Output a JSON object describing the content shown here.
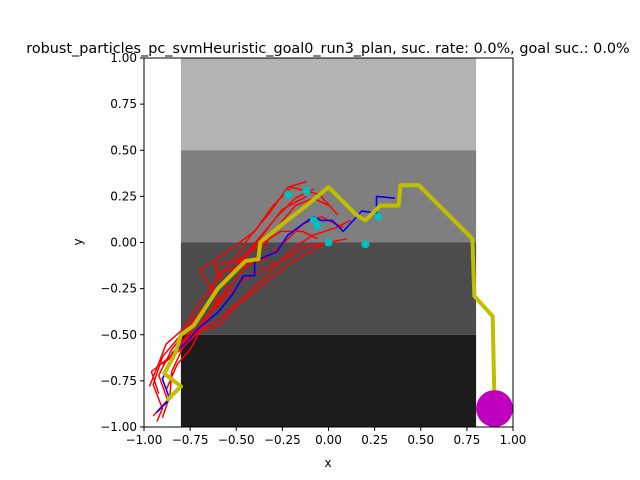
{
  "chart_data": {
    "type": "line",
    "title": "robust_particles_pc_svmHeuristic_goal0_run3_plan, suc. rate: 0.0%, goal suc.: 0.0%",
    "xlabel": "x",
    "ylabel": "y",
    "xlim": [
      -1.0,
      1.0
    ],
    "ylim": [
      -1.0,
      1.0
    ],
    "xticks": [
      "−1.00",
      "−0.75",
      "−0.50",
      "−0.25",
      "0.00",
      "0.25",
      "0.50",
      "0.75",
      "1.00"
    ],
    "yticks": [
      "−1.00",
      "−0.75",
      "−0.50",
      "−0.25",
      "0.00",
      "0.25",
      "0.50",
      "0.75",
      "1.00"
    ],
    "xtick_values": [
      -1.0,
      -0.75,
      -0.5,
      -0.25,
      0.0,
      0.25,
      0.5,
      0.75,
      1.0
    ],
    "ytick_values": [
      -1.0,
      -0.75,
      -0.5,
      -0.25,
      0.0,
      0.25,
      0.5,
      0.75,
      1.0
    ],
    "grid": false,
    "regions": [
      {
        "x0": -0.8,
        "x1": 0.8,
        "y0": 0.5,
        "y1": 1.0,
        "color": "#b3b3b3"
      },
      {
        "x0": -0.8,
        "x1": 0.8,
        "y0": 0.0,
        "y1": 0.5,
        "color": "#7f7f7f"
      },
      {
        "x0": -0.8,
        "x1": 0.8,
        "y0": -0.5,
        "y1": 0.0,
        "color": "#4c4c4c"
      },
      {
        "x0": -0.8,
        "x1": 0.8,
        "y0": -1.0,
        "y1": -0.5,
        "color": "#1c1c1c"
      }
    ],
    "goal": {
      "x": 0.9,
      "y": -0.9,
      "radius": 0.1,
      "color": "#bf00bf"
    },
    "red_color": "#ff0000",
    "red_series": [
      [
        [
          -0.93,
          -0.97
        ],
        [
          -0.9,
          -0.9
        ],
        [
          -0.95,
          -0.77
        ],
        [
          -0.9,
          -0.62
        ],
        [
          -0.8,
          -0.5
        ],
        [
          -0.7,
          -0.38
        ],
        [
          -0.6,
          -0.25
        ],
        [
          -0.48,
          -0.1
        ],
        [
          -0.38,
          0.02
        ],
        [
          -0.28,
          0.14
        ],
        [
          -0.18,
          0.24
        ],
        [
          -0.08,
          0.29
        ]
      ],
      [
        [
          -0.9,
          -0.95
        ],
        [
          -0.87,
          -0.86
        ],
        [
          -0.92,
          -0.72
        ],
        [
          -0.85,
          -0.58
        ],
        [
          -0.75,
          -0.45
        ],
        [
          -0.65,
          -0.32
        ],
        [
          -0.55,
          -0.2
        ],
        [
          -0.45,
          -0.08
        ],
        [
          -0.35,
          0.05
        ],
        [
          -0.25,
          0.18
        ],
        [
          -0.12,
          0.25
        ]
      ],
      [
        [
          -0.97,
          -0.78
        ],
        [
          -0.93,
          -0.68
        ],
        [
          -0.88,
          -0.55
        ],
        [
          -0.8,
          -0.48
        ],
        [
          -0.72,
          -0.36
        ],
        [
          -0.62,
          -0.22
        ],
        [
          -0.52,
          -0.1
        ],
        [
          -0.42,
          0.04
        ],
        [
          -0.32,
          0.16
        ],
        [
          -0.22,
          0.3
        ],
        [
          -0.12,
          0.33
        ]
      ],
      [
        [
          -0.95,
          -0.94
        ],
        [
          -0.86,
          -0.84
        ],
        [
          -0.85,
          -0.7
        ],
        [
          -0.78,
          -0.55
        ],
        [
          -0.68,
          -0.44
        ],
        [
          -0.58,
          -0.3
        ],
        [
          -0.48,
          -0.17
        ],
        [
          -0.38,
          -0.06
        ],
        [
          -0.28,
          0.08
        ],
        [
          -0.18,
          0.2
        ],
        [
          -0.08,
          0.24
        ],
        [
          0.0,
          0.2
        ]
      ],
      [
        [
          -0.88,
          -0.8
        ],
        [
          -0.82,
          -0.66
        ],
        [
          -0.75,
          -0.58
        ],
        [
          -0.66,
          -0.42
        ],
        [
          -0.6,
          -0.3
        ],
        [
          -0.7,
          -0.15
        ],
        [
          -0.55,
          -0.05
        ],
        [
          -0.4,
          0.06
        ],
        [
          -0.3,
          0.2
        ],
        [
          -0.2,
          0.3
        ],
        [
          -0.05,
          0.26
        ],
        [
          0.05,
          0.15
        ]
      ],
      [
        [
          -0.92,
          -0.82
        ],
        [
          -0.96,
          -0.7
        ],
        [
          -0.86,
          -0.62
        ],
        [
          -0.78,
          -0.52
        ],
        [
          -0.66,
          -0.36
        ],
        [
          -0.6,
          -0.16
        ],
        [
          -0.5,
          -0.14
        ],
        [
          -0.36,
          -0.1
        ],
        [
          -0.26,
          -0.02
        ],
        [
          -0.14,
          0.1
        ],
        [
          -0.04,
          0.14
        ],
        [
          0.08,
          0.08
        ]
      ],
      [
        [
          -0.85,
          -0.6
        ],
        [
          -0.76,
          -0.52
        ],
        [
          -0.6,
          -0.42
        ],
        [
          -0.48,
          -0.32
        ],
        [
          -0.38,
          -0.22
        ],
        [
          -0.28,
          -0.12
        ],
        [
          -0.18,
          -0.02
        ],
        [
          -0.08,
          0.04
        ],
        [
          0.04,
          0.08
        ],
        [
          0.12,
          0.12
        ]
      ],
      [
        [
          -0.9,
          -0.66
        ],
        [
          -0.8,
          -0.58
        ],
        [
          -0.7,
          -0.48
        ],
        [
          -0.58,
          -0.44
        ],
        [
          -0.52,
          -0.36
        ],
        [
          -0.42,
          -0.28
        ],
        [
          -0.32,
          -0.2
        ],
        [
          -0.22,
          -0.12
        ],
        [
          -0.12,
          -0.06
        ],
        [
          -0.02,
          0.0
        ]
      ],
      [
        [
          -0.8,
          -0.55
        ],
        [
          -0.7,
          -0.45
        ],
        [
          -0.62,
          -0.35
        ],
        [
          -0.55,
          -0.25
        ],
        [
          -0.62,
          -0.12
        ],
        [
          -0.5,
          -0.1
        ],
        [
          -0.38,
          -0.02
        ],
        [
          -0.26,
          0.06
        ],
        [
          -0.14,
          0.06
        ],
        [
          -0.06,
          0.02
        ]
      ],
      [
        [
          -0.74,
          -0.5
        ],
        [
          -0.66,
          -0.4
        ],
        [
          -0.56,
          -0.3
        ],
        [
          -0.46,
          -0.2
        ],
        [
          -0.34,
          -0.14
        ],
        [
          -0.22,
          -0.08
        ],
        [
          -0.12,
          -0.02
        ],
        [
          0.0,
          0.0
        ],
        [
          0.1,
          0.02
        ]
      ]
    ],
    "blue_series": {
      "color": "#0000ff",
      "points": [
        [
          -0.93,
          -0.92
        ],
        [
          -0.86,
          -0.85
        ],
        [
          -0.9,
          -0.74
        ],
        [
          -0.84,
          -0.6
        ],
        [
          -0.78,
          -0.55
        ],
        [
          -0.7,
          -0.46
        ],
        [
          -0.6,
          -0.38
        ],
        [
          -0.52,
          -0.28
        ],
        [
          -0.46,
          -0.18
        ],
        [
          -0.4,
          -0.18
        ],
        [
          -0.4,
          -0.1
        ],
        [
          -0.28,
          -0.05
        ],
        [
          -0.22,
          0.04
        ],
        [
          -0.14,
          0.1
        ],
        [
          -0.08,
          0.14
        ],
        [
          -0.04,
          0.12
        ],
        [
          0.02,
          0.12
        ],
        [
          0.08,
          0.06
        ],
        [
          0.18,
          0.17
        ],
        [
          0.26,
          0.16
        ],
        [
          0.26,
          0.25
        ],
        [
          0.36,
          0.24
        ]
      ]
    },
    "yellow_series": {
      "color": "#bfbf00",
      "points": [
        [
          -0.87,
          -0.85
        ],
        [
          -0.8,
          -0.78
        ],
        [
          -0.89,
          -0.71
        ],
        [
          -0.83,
          -0.6
        ],
        [
          -0.8,
          -0.5
        ],
        [
          -0.73,
          -0.45
        ],
        [
          -0.6,
          -0.25
        ],
        [
          -0.45,
          -0.1
        ],
        [
          -0.38,
          -0.09
        ],
        [
          -0.37,
          0.0
        ],
        [
          -0.25,
          0.1
        ],
        [
          -0.12,
          0.2
        ],
        [
          0.0,
          0.3
        ],
        [
          0.1,
          0.2
        ],
        [
          0.15,
          0.15
        ],
        [
          0.2,
          0.12
        ],
        [
          0.28,
          0.2
        ],
        [
          0.38,
          0.2
        ],
        [
          0.39,
          0.31
        ],
        [
          0.49,
          0.31
        ],
        [
          0.78,
          0.02
        ],
        [
          0.79,
          -0.29
        ],
        [
          0.89,
          -0.4
        ],
        [
          0.9,
          -0.9
        ]
      ]
    },
    "cyan_points": {
      "color": "#00bfbf",
      "points": [
        [
          -0.22,
          0.26
        ],
        [
          -0.12,
          0.28
        ],
        [
          -0.08,
          0.12
        ],
        [
          -0.06,
          0.09
        ],
        [
          0.0,
          0.0
        ],
        [
          0.2,
          -0.01
        ],
        [
          0.27,
          0.14
        ]
      ]
    }
  }
}
